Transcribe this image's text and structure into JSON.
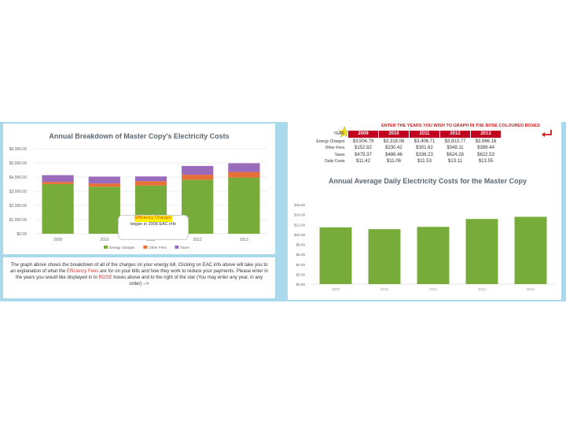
{
  "left_chart": {
    "title": "Annual Breakdown of Master Copy's Electricity Costs",
    "callout": {
      "highlight": "Efficiency Charges",
      "rest": "began in 2008 EAC info"
    }
  },
  "description": {
    "part1": "The graph above shows the breakdown of all of the charges on your energy bill. Clicking on EAC info above will take you to an explanation of what the",
    "highlight": "Efficiency Fees",
    "part2": "are for on your bills and how they work to reduce your payments. Please enter in the years you would like displayed in to",
    "part2_highlight": "ROSE",
    "part3": "boxes above and to the right of the star (You may enter any year, in any order) -->"
  },
  "table": {
    "instruction": "ENTER THE YEARS YOU WISH TO GRAPH IN THE ROSE COLOURED BOXES",
    "year_label": "YEAR",
    "years": [
      "2009",
      "2010",
      "2011",
      "2012",
      "2013"
    ],
    "rows": [
      {
        "label": "Energy Charges",
        "values": [
          "$3,504.79",
          "$3,318.06",
          "$3,406.71",
          "$3,813.77",
          "$3,966.16"
        ]
      },
      {
        "label": "Other Fees",
        "values": [
          "$152.82",
          "$230.42",
          "$301.62",
          "$348.11",
          "$389.44"
        ]
      },
      {
        "label": "Taxes",
        "values": [
          "$479.37",
          "$486.46",
          "$336.23",
          "$624.28",
          "$622.53"
        ]
      },
      {
        "label": "Daily Costs",
        "values": [
          "$11.42",
          "$11.06",
          "$11.53",
          "$13.11",
          "$13.55"
        ]
      }
    ]
  },
  "right_chart": {
    "title": "Annual Average Daily Electricity Costs for the Master Copy"
  },
  "colors": {
    "energy": "#77ac3a",
    "other": "#e87038",
    "taxes": "#9a6bbb",
    "bar": "#77ac3a",
    "axis_text": "#666666",
    "gridline": "#dddddd"
  },
  "chart_data": [
    {
      "type": "bar",
      "stacked": true,
      "title": "Annual Breakdown of Master Copy's Electricity Costs",
      "categories": [
        "2009",
        "2010",
        "2011",
        "2012",
        "2013"
      ],
      "series": [
        {
          "name": "Energy Charges",
          "values": [
            3504.79,
            3318.06,
            3406.71,
            3813.77,
            3966.16
          ]
        },
        {
          "name": "Other Fees",
          "values": [
            152.82,
            230.42,
            301.62,
            348.11,
            389.44
          ]
        },
        {
          "name": "Taxes",
          "values": [
            479.37,
            486.46,
            336.23,
            624.28,
            622.53
          ]
        }
      ],
      "ylim": [
        0,
        6000
      ],
      "yticks": [
        "$0.00",
        "$1,000.00",
        "$2,000.00",
        "$3,000.00",
        "$4,000.00",
        "$5,000.00",
        "$6,000.00"
      ],
      "legend": "bottom"
    },
    {
      "type": "bar",
      "title": "Annual Average Daily Electricity Costs for the Master Copy",
      "categories": [
        "2009",
        "2010",
        "2011",
        "2012",
        "2013"
      ],
      "values": [
        11.42,
        11.06,
        11.53,
        13.11,
        13.55
      ],
      "ylim": [
        0,
        16
      ],
      "yticks": [
        "$0.00",
        "$2.00",
        "$4.00",
        "$6.00",
        "$8.00",
        "$10.00",
        "$12.00",
        "$14.00",
        "$16.00"
      ]
    }
  ]
}
